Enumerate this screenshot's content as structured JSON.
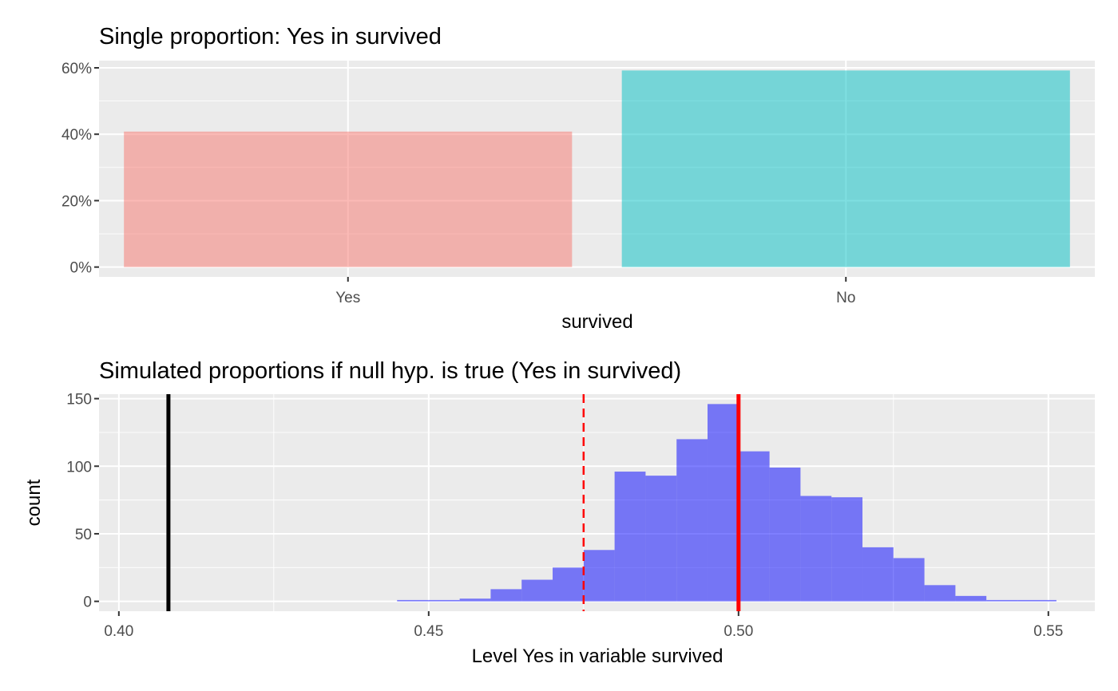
{
  "chart_data": [
    {
      "type": "bar",
      "title": "Single proportion: Yes in survived",
      "xlabel": "survived",
      "ylabel": "",
      "categories": [
        "Yes",
        "No"
      ],
      "values": [
        0.408,
        0.592
      ],
      "colors": [
        "#F8766D",
        "#00BFC4"
      ],
      "bar_alpha": 0.5,
      "ylim": [
        -0.0296,
        0.6216
      ],
      "yticks": [
        0,
        0.2,
        0.4,
        0.6
      ],
      "ytick_labels": [
        "0%",
        "20%",
        "40%",
        "60%"
      ],
      "panel_background": "#ebebeb",
      "grid": true
    },
    {
      "type": "histogram",
      "title": "Simulated proportions if null hyp. is true (Yes in survived)",
      "xlabel": "Level Yes in variable survived",
      "ylabel": "count",
      "bins": [
        {
          "x0": 0.4449,
          "x1": 0.45,
          "count": 1
        },
        {
          "x0": 0.45,
          "x1": 0.455,
          "count": 1
        },
        {
          "x0": 0.455,
          "x1": 0.46,
          "count": 2
        },
        {
          "x0": 0.46,
          "x1": 0.465,
          "count": 9
        },
        {
          "x0": 0.465,
          "x1": 0.47,
          "count": 16
        },
        {
          "x0": 0.47,
          "x1": 0.475,
          "count": 25
        },
        {
          "x0": 0.475,
          "x1": 0.48,
          "count": 38
        },
        {
          "x0": 0.48,
          "x1": 0.485,
          "count": 96
        },
        {
          "x0": 0.485,
          "x1": 0.49,
          "count": 93
        },
        {
          "x0": 0.49,
          "x1": 0.495,
          "count": 120
        },
        {
          "x0": 0.495,
          "x1": 0.5,
          "count": 146
        },
        {
          "x0": 0.5,
          "x1": 0.505,
          "count": 111
        },
        {
          "x0": 0.505,
          "x1": 0.51,
          "count": 99
        },
        {
          "x0": 0.51,
          "x1": 0.515,
          "count": 78
        },
        {
          "x0": 0.515,
          "x1": 0.52,
          "count": 77
        },
        {
          "x0": 0.52,
          "x1": 0.525,
          "count": 40
        },
        {
          "x0": 0.525,
          "x1": 0.53,
          "count": 32
        },
        {
          "x0": 0.53,
          "x1": 0.535,
          "count": 12
        },
        {
          "x0": 0.535,
          "x1": 0.54,
          "count": 4
        },
        {
          "x0": 0.54,
          "x1": 0.5451,
          "count": 1
        },
        {
          "x0": 0.5451,
          "x1": 0.5513,
          "count": 1
        }
      ],
      "bar_color": "#0000ff",
      "bar_alpha": 0.5,
      "vlines": [
        {
          "x": 0.408,
          "color": "#000000",
          "style": "solid",
          "weight": "thick"
        },
        {
          "x": 0.475,
          "color": "#ff0000",
          "style": "dashed",
          "weight": "thin"
        },
        {
          "x": 0.5,
          "color": "#ff0000",
          "style": "solid",
          "weight": "thick"
        }
      ],
      "xlim": [
        0.3968,
        0.5575
      ],
      "xticks": [
        0.4,
        0.45,
        0.5,
        0.55
      ],
      "xtick_labels": [
        "0.40",
        "0.45",
        "0.50",
        "0.55"
      ],
      "ylim": [
        -7.3,
        153.3
      ],
      "yticks": [
        0,
        50,
        100,
        150
      ],
      "ytick_labels": [
        "0",
        "50",
        "100",
        "150"
      ],
      "panel_background": "#ebebeb",
      "grid": true
    }
  ]
}
